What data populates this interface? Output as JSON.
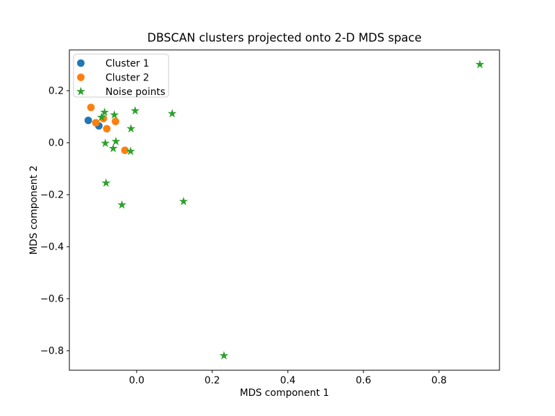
{
  "chart_data": {
    "type": "scatter",
    "title": "DBSCAN clusters projected onto 2-D MDS space",
    "xlabel": "MDS component 1",
    "ylabel": "MDS component 2",
    "xlim": [
      -0.178,
      0.96
    ],
    "ylim": [
      -0.875,
      0.357
    ],
    "xticks": [
      0.0,
      0.2,
      0.4,
      0.6,
      0.8
    ],
    "yticks": [
      0.2,
      0.0,
      -0.2,
      -0.4,
      -0.6,
      -0.8
    ],
    "grid": false,
    "background": "#ffffff",
    "axis_color": "#000000",
    "legend": {
      "position": "upper left",
      "border_color": "#cccccc",
      "fill_color": "#ffffff"
    },
    "series": [
      {
        "name": "Cluster 1",
        "marker": "circle",
        "color": "#1f77b4",
        "points": [
          [
            -0.128,
            0.086
          ],
          [
            -0.1,
            0.065
          ]
        ]
      },
      {
        "name": "Cluster 2",
        "marker": "circle",
        "color": "#ff7f0e",
        "points": [
          [
            -0.121,
            0.136
          ],
          [
            -0.108,
            0.077
          ],
          [
            -0.088,
            0.093
          ],
          [
            -0.079,
            0.054
          ],
          [
            -0.056,
            0.082
          ],
          [
            -0.031,
            -0.029
          ]
        ]
      },
      {
        "name": "Noise points",
        "marker": "star",
        "color": "#2ca02c",
        "points": [
          [
            -0.093,
            0.098
          ],
          [
            -0.085,
            0.117
          ],
          [
            -0.059,
            0.107
          ],
          [
            -0.004,
            0.123
          ],
          [
            0.094,
            0.112
          ],
          [
            -0.015,
            0.054
          ],
          [
            -0.083,
            -0.002
          ],
          [
            -0.055,
            0.005
          ],
          [
            -0.062,
            -0.022
          ],
          [
            -0.016,
            -0.033
          ],
          [
            -0.081,
            -0.155
          ],
          [
            -0.039,
            -0.239
          ],
          [
            0.124,
            -0.226
          ],
          [
            0.231,
            -0.819
          ],
          [
            0.908,
            0.301
          ]
        ]
      }
    ]
  }
}
